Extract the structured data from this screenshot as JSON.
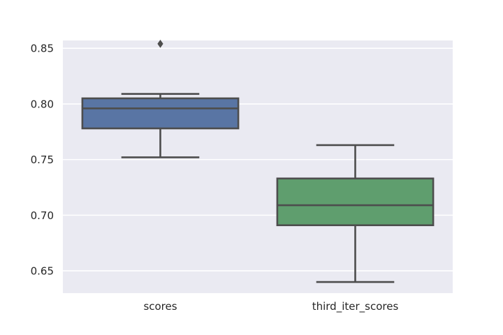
{
  "chart_data": {
    "type": "box",
    "title": "",
    "xlabel": "",
    "ylabel": "",
    "ylim": [
      0.63,
      0.857
    ],
    "yticks": [
      0.65,
      0.7,
      0.75,
      0.8,
      0.85
    ],
    "ytick_labels": [
      "0.65",
      "0.70",
      "0.75",
      "0.80",
      "0.85"
    ],
    "grid": true,
    "background_color": "#eaeaf2",
    "gridline_color": "#ffffff",
    "line_color": "#4d4d4d",
    "categories": [
      "scores",
      "third_iter_scores"
    ],
    "series": [
      {
        "category": "scores",
        "color": "#5975a4",
        "whisker_low": 0.752,
        "q1": 0.778,
        "median": 0.796,
        "q3": 0.805,
        "whisker_high": 0.809,
        "outliers": [
          0.854
        ]
      },
      {
        "category": "third_iter_scores",
        "color": "#5f9e6e",
        "whisker_low": 0.64,
        "q1": 0.691,
        "median": 0.709,
        "q3": 0.733,
        "whisker_high": 0.763,
        "outliers": []
      }
    ]
  }
}
